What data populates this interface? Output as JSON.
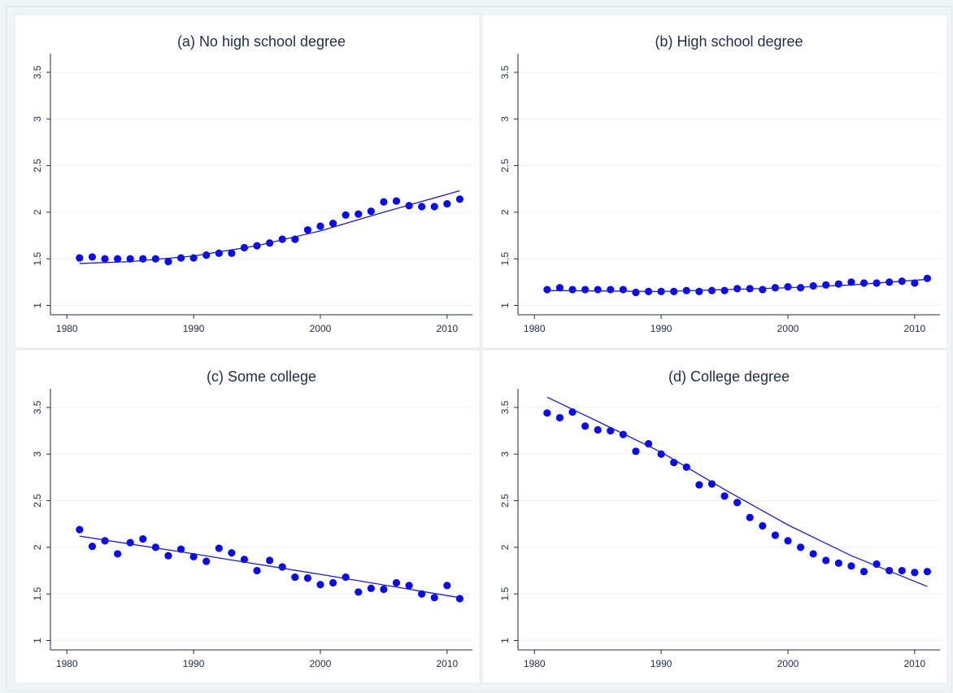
{
  "chart_data": [
    {
      "type": "scatter",
      "title": "(a) No high school degree",
      "x": [
        1981,
        1982,
        1983,
        1984,
        1985,
        1986,
        1987,
        1988,
        1989,
        1990,
        1991,
        1992,
        1993,
        1994,
        1995,
        1996,
        1997,
        1998,
        1999,
        2000,
        2001,
        2002,
        2003,
        2004,
        2005,
        2006,
        2007,
        2008,
        2009,
        2010,
        2011
      ],
      "values": [
        1.51,
        1.52,
        1.5,
        1.5,
        1.5,
        1.5,
        1.5,
        1.47,
        1.51,
        1.51,
        1.54,
        1.56,
        1.56,
        1.62,
        1.64,
        1.67,
        1.71,
        1.71,
        1.81,
        1.85,
        1.88,
        1.97,
        1.98,
        2.01,
        2.11,
        2.12,
        2.07,
        2.06,
        2.06,
        2.09,
        2.14
      ],
      "color": "#0a0af0",
      "fit": {
        "x": [
          1981,
          1985,
          1990,
          1995,
          2000,
          2005,
          2011
        ],
        "values": [
          1.45,
          1.47,
          1.53,
          1.64,
          1.8,
          2.0,
          2.23
        ],
        "color": "#1a1ad8"
      },
      "xlim": [
        1978.7,
        2012
      ],
      "ylim": [
        0.9,
        3.7
      ],
      "xticks": [
        1980,
        1990,
        2000,
        2010
      ],
      "yticks": [
        1,
        1.5,
        2,
        2.5,
        3,
        3.5
      ],
      "grid": true
    },
    {
      "type": "scatter",
      "title": "(b) High school degree",
      "x": [
        1981,
        1982,
        1983,
        1984,
        1985,
        1986,
        1987,
        1988,
        1989,
        1990,
        1991,
        1992,
        1993,
        1994,
        1995,
        1996,
        1997,
        1998,
        1999,
        2000,
        2001,
        2002,
        2003,
        2004,
        2005,
        2006,
        2007,
        2008,
        2009,
        2010,
        2011
      ],
      "values": [
        1.17,
        1.19,
        1.17,
        1.17,
        1.17,
        1.17,
        1.17,
        1.14,
        1.15,
        1.15,
        1.15,
        1.16,
        1.15,
        1.16,
        1.16,
        1.18,
        1.18,
        1.17,
        1.19,
        1.2,
        1.19,
        1.21,
        1.22,
        1.23,
        1.25,
        1.24,
        1.24,
        1.25,
        1.26,
        1.24,
        1.29
      ],
      "color": "#0a0af0",
      "fit": {
        "x": [
          1981,
          1990,
          2000,
          2005,
          2011
        ],
        "values": [
          1.16,
          1.15,
          1.19,
          1.22,
          1.28
        ],
        "color": "#1a1ad8"
      },
      "xlim": [
        1978.7,
        2012
      ],
      "ylim": [
        0.9,
        3.7
      ],
      "xticks": [
        1980,
        1990,
        2000,
        2010
      ],
      "yticks": [
        1,
        1.5,
        2,
        2.5,
        3,
        3.5
      ],
      "grid": true
    },
    {
      "type": "scatter",
      "title": "(c) Some college",
      "x": [
        1981,
        1982,
        1983,
        1984,
        1985,
        1986,
        1987,
        1988,
        1989,
        1990,
        1991,
        1992,
        1993,
        1994,
        1995,
        1996,
        1997,
        1998,
        1999,
        2000,
        2001,
        2002,
        2003,
        2004,
        2005,
        2006,
        2007,
        2008,
        2009,
        2010,
        2011
      ],
      "values": [
        2.19,
        2.01,
        2.07,
        1.93,
        2.05,
        2.09,
        2.0,
        1.91,
        1.98,
        1.9,
        1.85,
        1.99,
        1.94,
        1.87,
        1.75,
        1.86,
        1.79,
        1.68,
        1.67,
        1.6,
        1.62,
        1.68,
        1.52,
        1.56,
        1.55,
        1.62,
        1.59,
        1.5,
        1.46,
        1.59,
        1.45
      ],
      "color": "#0a0af0",
      "fit": {
        "x": [
          1981,
          1990,
          2000,
          2011
        ],
        "values": [
          2.12,
          1.93,
          1.71,
          1.46
        ],
        "color": "#1a1ad8"
      },
      "xlim": [
        1978.7,
        2012
      ],
      "ylim": [
        0.9,
        3.7
      ],
      "xticks": [
        1980,
        1990,
        2000,
        2010
      ],
      "yticks": [
        1,
        1.5,
        2,
        2.5,
        3,
        3.5
      ],
      "grid": true
    },
    {
      "type": "scatter",
      "title": "(d) College degree",
      "x": [
        1981,
        1982,
        1983,
        1984,
        1985,
        1986,
        1987,
        1988,
        1989,
        1990,
        1991,
        1992,
        1993,
        1994,
        1995,
        1996,
        1997,
        1998,
        1999,
        2000,
        2001,
        2002,
        2003,
        2004,
        2005,
        2006,
        2007,
        2008,
        2009,
        2010,
        2011
      ],
      "values": [
        3.44,
        3.39,
        3.45,
        3.3,
        3.26,
        3.25,
        3.21,
        3.03,
        3.11,
        3.0,
        2.91,
        2.86,
        2.67,
        2.68,
        2.55,
        2.48,
        2.32,
        2.23,
        2.13,
        2.07,
        2.0,
        1.93,
        1.86,
        1.83,
        1.8,
        1.74,
        1.82,
        1.75,
        1.75,
        1.73,
        1.74
      ],
      "color": "#0a0af0",
      "fit": {
        "x": [
          1981,
          1985,
          1990,
          1995,
          2000,
          2005,
          2011
        ],
        "values": [
          3.61,
          3.35,
          3.02,
          2.62,
          2.24,
          1.91,
          1.58
        ],
        "color": "#1a1ad8"
      },
      "xlim": [
        1978.7,
        2012
      ],
      "ylim": [
        0.9,
        3.7
      ],
      "xticks": [
        1980,
        1990,
        2000,
        2010
      ],
      "yticks": [
        1,
        1.5,
        2,
        2.5,
        3,
        3.5
      ],
      "grid": true
    }
  ]
}
